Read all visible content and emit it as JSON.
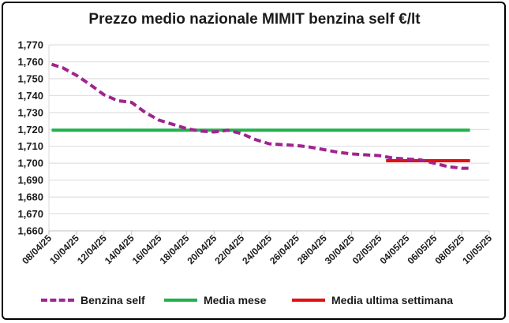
{
  "chart_data": {
    "type": "line",
    "title": "Prezzo medio nazionale MIMIT benzina self €/lt",
    "ylim": [
      1.66,
      1.77
    ],
    "yticks": [
      "1,660",
      "1,670",
      "1,680",
      "1,690",
      "1,700",
      "1,710",
      "1,720",
      "1,730",
      "1,740",
      "1,750",
      "1,760",
      "1,770"
    ],
    "xticks": [
      "08/04/25",
      "10/04/25",
      "12/04/25",
      "14/04/25",
      "16/04/25",
      "18/04/25",
      "20/04/25",
      "22/04/25",
      "24/04/25",
      "26/04/25",
      "28/04/25",
      "30/04/25",
      "02/05/25",
      "04/05/25",
      "06/05/25",
      "08/05/25",
      "10/05/25"
    ],
    "xrange_days": [
      0,
      32
    ],
    "grid": "horizontal",
    "legend_position": "bottom",
    "series": [
      {
        "name": "Benzina self",
        "color": "#a0248f",
        "style": "dashed",
        "x": [
          0.2,
          1,
          2,
          3,
          4,
          5,
          6,
          7,
          8,
          9,
          10,
          11,
          12,
          13,
          14,
          15,
          16,
          17,
          18,
          19,
          20,
          21,
          22,
          23,
          24,
          25,
          26,
          27,
          28,
          29,
          30,
          30.6
        ],
        "y": [
          1.7585,
          1.7565,
          1.752,
          1.7465,
          1.7405,
          1.737,
          1.736,
          1.73,
          1.7255,
          1.723,
          1.7205,
          1.719,
          1.7185,
          1.7195,
          1.7175,
          1.714,
          1.7115,
          1.711,
          1.7105,
          1.7095,
          1.708,
          1.7065,
          1.7055,
          1.705,
          1.7045,
          1.703,
          1.7025,
          1.702,
          1.7,
          1.698,
          1.697,
          1.697
        ]
      },
      {
        "name": "Media mese",
        "color": "#22b04a",
        "style": "solid",
        "x": [
          0.2,
          30.6
        ],
        "y": [
          1.7195,
          1.7195
        ]
      },
      {
        "name": "Media ultima settimana",
        "color": "#e01010",
        "style": "solid",
        "x": [
          24.5,
          30.6
        ],
        "y": [
          1.7015,
          1.7015
        ]
      }
    ]
  }
}
